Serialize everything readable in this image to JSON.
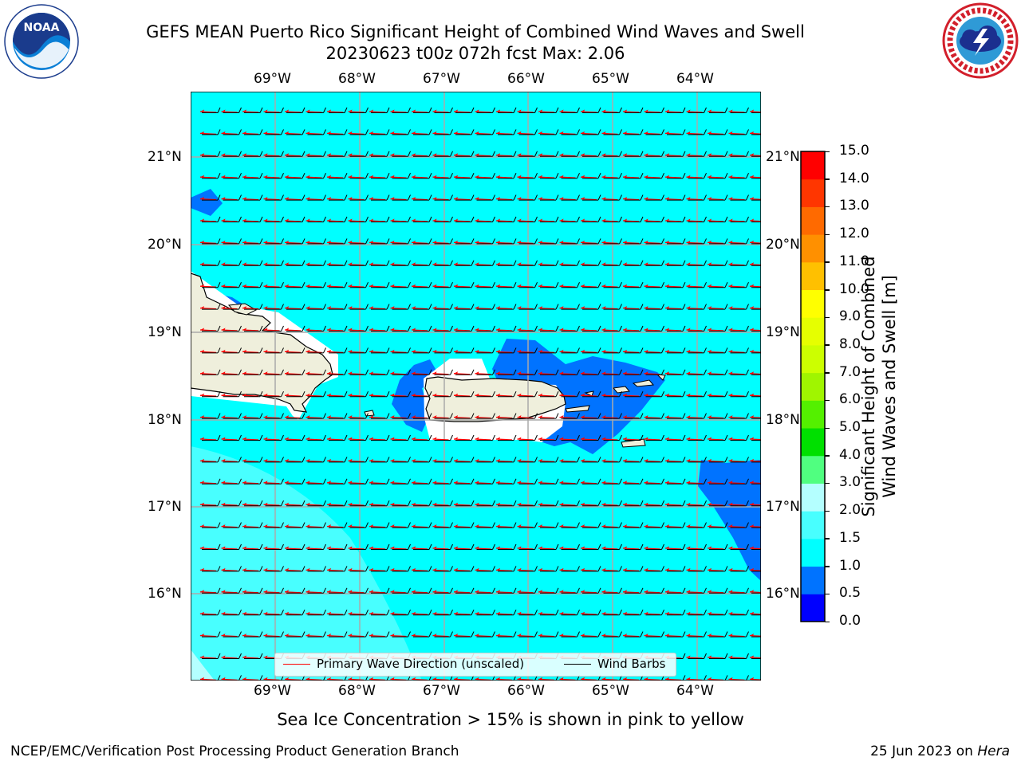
{
  "title": {
    "line1": "GEFS MEAN Puerto Rico Significant Height of Combined Wind Waves and Swell",
    "line2": "20230623 t00z 072h fcst   Max: 2.06"
  },
  "logos": {
    "left": {
      "icon": "noaa-logo",
      "text": "NOAA"
    },
    "right": {
      "icon": "nws-logo"
    }
  },
  "map": {
    "lon_labels": [
      "69°W",
      "68°W",
      "67°W",
      "66°W",
      "65°W",
      "64°W"
    ],
    "lat_labels": [
      "21°N",
      "20°N",
      "19°N",
      "18°N",
      "17°N",
      "16°N"
    ],
    "ocean_color": "#00ffff",
    "land_color": "#efefdc",
    "primary_wave_direction_color": "#ff0000",
    "wind_barb_color": "#000000"
  },
  "legend": {
    "primary_wave": "Primary Wave Direction (unscaled)",
    "wind_barbs": "Wind Barbs"
  },
  "colorbar": {
    "label_line1": "Significant Height of Combined",
    "label_line2": "Wind Waves and Swell [m]",
    "ticks": [
      "0.0",
      "0.5",
      "1.0",
      "1.5",
      "2.0",
      "3.0",
      "4.0",
      "5.0",
      "6.0",
      "7.0",
      "8.0",
      "9.0",
      "10.0",
      "11.0",
      "12.0",
      "13.0",
      "14.0",
      "15.0"
    ],
    "colors": [
      "#0000ff",
      "#0073ff",
      "#00ffff",
      "#48ffff",
      "#b4ffff",
      "#50ff80",
      "#00e000",
      "#54f000",
      "#a0f500",
      "#ccff00",
      "#e6ff00",
      "#ffff00",
      "#ffc000",
      "#ff9000",
      "#ff6a00",
      "#ff3600",
      "#ff0000"
    ]
  },
  "note": "Sea Ice Concentration > 15% is shown in pink to yellow",
  "footer": {
    "left": "NCEP/EMC/Verification Post Processing Product Generation Branch",
    "date": "25 Jun 2023 on ",
    "host": "Hera"
  }
}
